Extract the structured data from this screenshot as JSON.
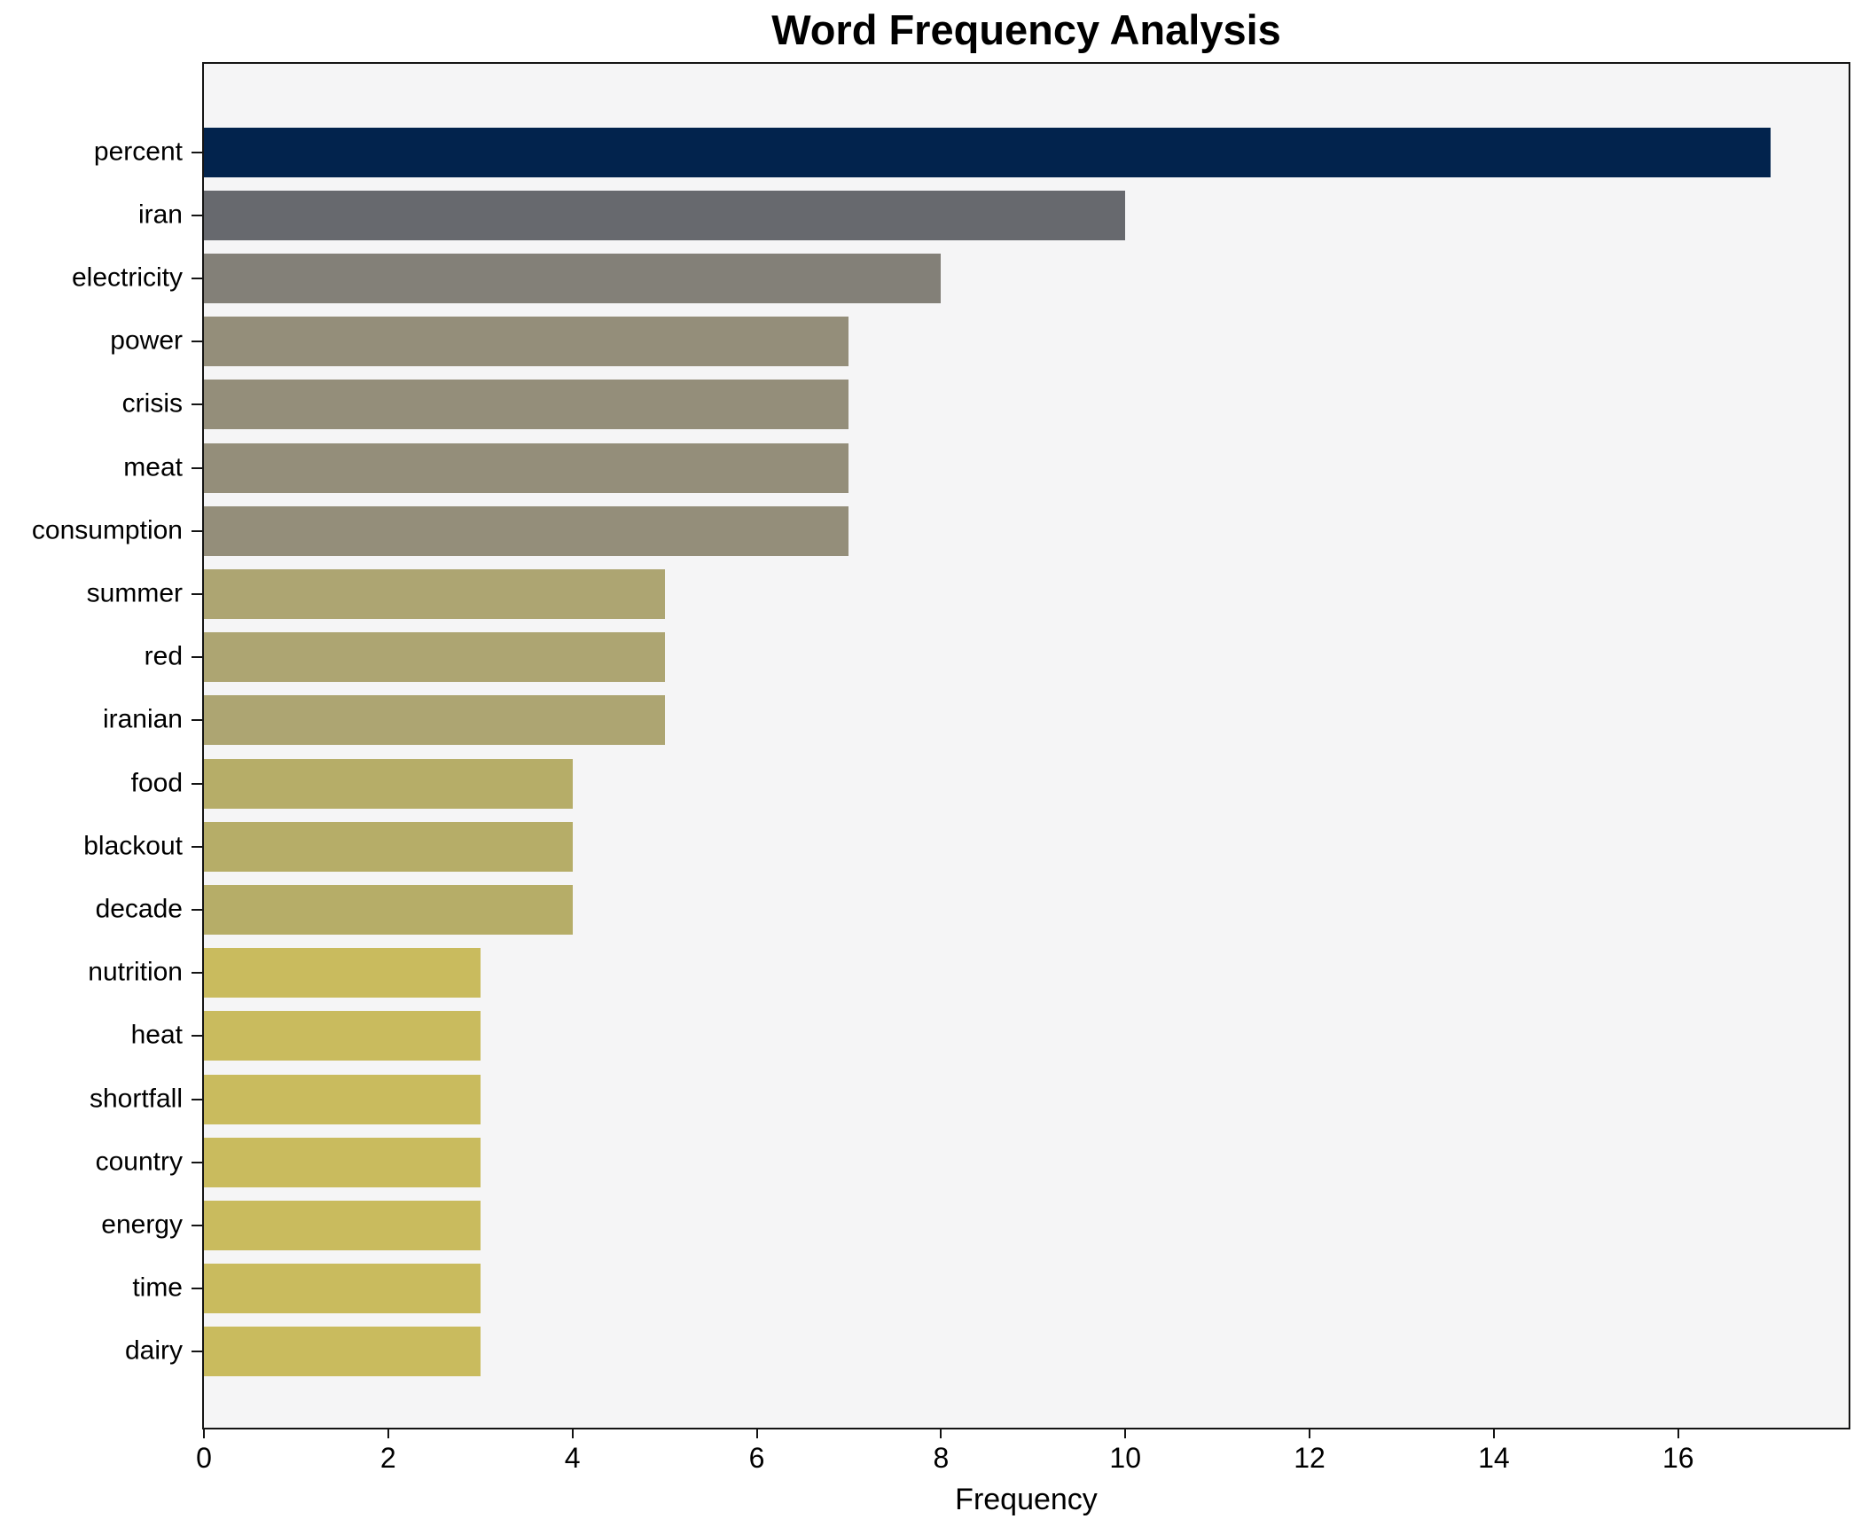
{
  "chart_data": {
    "type": "bar",
    "orientation": "horizontal",
    "title": "Word Frequency Analysis",
    "xlabel": "Frequency",
    "ylabel": "",
    "categories": [
      "percent",
      "iran",
      "electricity",
      "power",
      "crisis",
      "meat",
      "consumption",
      "summer",
      "red",
      "iranian",
      "food",
      "blackout",
      "decade",
      "nutrition",
      "heat",
      "shortfall",
      "country",
      "energy",
      "time",
      "dairy"
    ],
    "values": [
      17,
      10,
      8,
      7,
      7,
      7,
      7,
      5,
      5,
      5,
      4,
      4,
      4,
      3,
      3,
      3,
      3,
      3,
      3,
      3
    ],
    "bar_colors": [
      "#02234d",
      "#67696e",
      "#838078",
      "#948e7a",
      "#948e7a",
      "#948e7a",
      "#948e7a",
      "#ada572",
      "#ada572",
      "#ada572",
      "#b6ad68",
      "#b6ad68",
      "#b6ad68",
      "#c9bb5e",
      "#c9bb5e",
      "#c9bb5e",
      "#c9bb5e",
      "#c9bb5e",
      "#c9bb5e",
      "#c9bb5e"
    ],
    "xlim": [
      0,
      17.85
    ],
    "x_ticks": [
      0,
      2,
      4,
      6,
      8,
      10,
      12,
      14,
      16
    ],
    "grid": false,
    "legend_position": "none",
    "plot_bg": "#f5f5f6",
    "figure_bg": "#ffffff",
    "spine_color": "#141414"
  }
}
